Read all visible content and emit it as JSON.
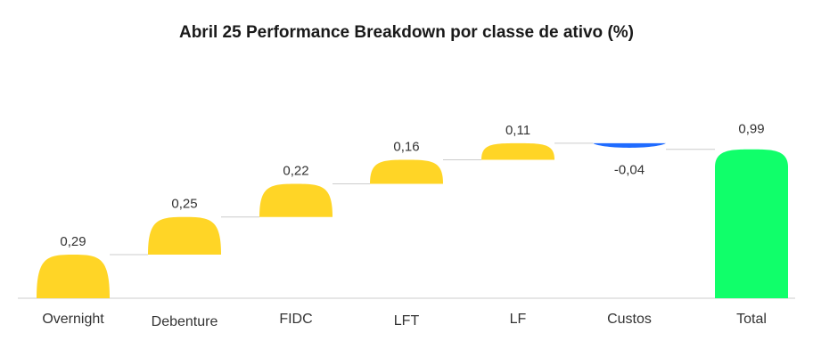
{
  "chart_data": {
    "type": "bar",
    "subtype": "waterfall",
    "title": "Abril 25 Performance Breakdown por classe de ativo (%)",
    "categories": [
      "Overnight",
      "Debenture",
      "FIDC",
      "LFT",
      "LF",
      "Custos",
      "Total"
    ],
    "values": [
      0.29,
      0.25,
      0.22,
      0.16,
      0.11,
      -0.04,
      0.99
    ],
    "value_labels": [
      "0,29",
      "0,25",
      "0,22",
      "0,16",
      "0,11",
      "-0,04",
      "0,99"
    ],
    "total_index": 6,
    "xlabel": "",
    "ylabel": "",
    "ylim": [
      0,
      1.2
    ],
    "grid": false,
    "colors": {
      "positive": "#FFD526",
      "negative": "#1F6BFF",
      "total": "#10FF6A",
      "connector": "#CCCCCC",
      "baseline": "#CCCCCC"
    }
  }
}
